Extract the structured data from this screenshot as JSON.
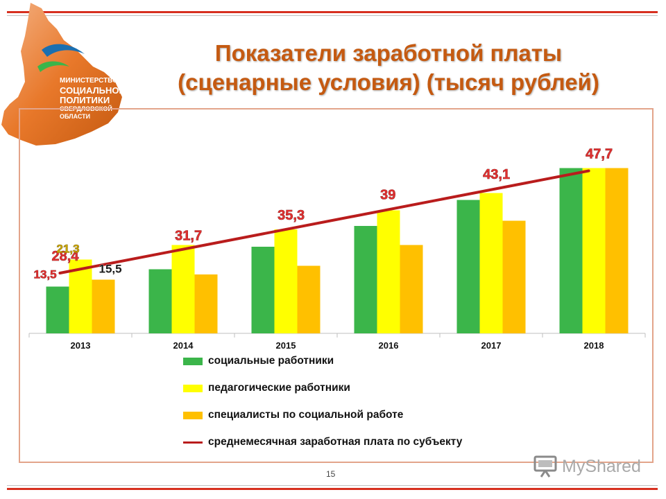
{
  "logo": {
    "lines": [
      "МИНИСТЕРСТВО",
      "СОЦИАЛЬНОЙ",
      "ПОЛИТИКИ",
      "СВЕРДЛОВСКОЙ",
      "ОБЛАСТИ"
    ]
  },
  "title": {
    "line1": "Показатели заработной платы",
    "line2": "(сценарные условия) (тысяч рублей)"
  },
  "page_number": "15",
  "watermark": "MyShared",
  "colors": {
    "social": "#3bb54a",
    "pedagogical": "#ffff00",
    "specialists": "#ffc000",
    "average_line": "#b91c1c",
    "label_red": "#e03030",
    "title": "#c55a11",
    "frame": "#e3a48a",
    "rule": "#d7301f"
  },
  "chart_data": {
    "type": "bar",
    "categories": [
      "2013",
      "2014",
      "2015",
      "2016",
      "2017",
      "2018"
    ],
    "series": [
      {
        "name": "социальные работники",
        "type": "bar",
        "color": "#3bb54a",
        "values": [
          13.5,
          18.5,
          25.0,
          31.0,
          38.5,
          47.7
        ],
        "labels": [
          "13,5",
          null,
          null,
          null,
          null,
          null
        ]
      },
      {
        "name": "педагогические работники",
        "type": "bar",
        "color": "#ffff00",
        "values": [
          21.3,
          25.5,
          30.0,
          35.5,
          40.5,
          47.7
        ],
        "labels": [
          "21,3",
          null,
          null,
          null,
          null,
          null
        ]
      },
      {
        "name": "специалисты по социальной работе",
        "type": "bar",
        "color": "#ffc000",
        "values": [
          15.5,
          17.0,
          19.5,
          25.5,
          32.5,
          47.7
        ],
        "labels": [
          "15,5",
          null,
          null,
          null,
          null,
          null
        ]
      },
      {
        "name": "среднемесячная заработная плата по субъекту",
        "type": "line",
        "color": "#b91c1c",
        "values": [
          28.4,
          31.7,
          35.3,
          39.0,
          43.1,
          47.7
        ],
        "labels": [
          "28,4",
          "31,7",
          "35,3",
          "39",
          "43,1",
          "47,7"
        ]
      }
    ],
    "ylim": [
      0,
      50
    ],
    "grid": false,
    "legend_placement": "bottom"
  }
}
